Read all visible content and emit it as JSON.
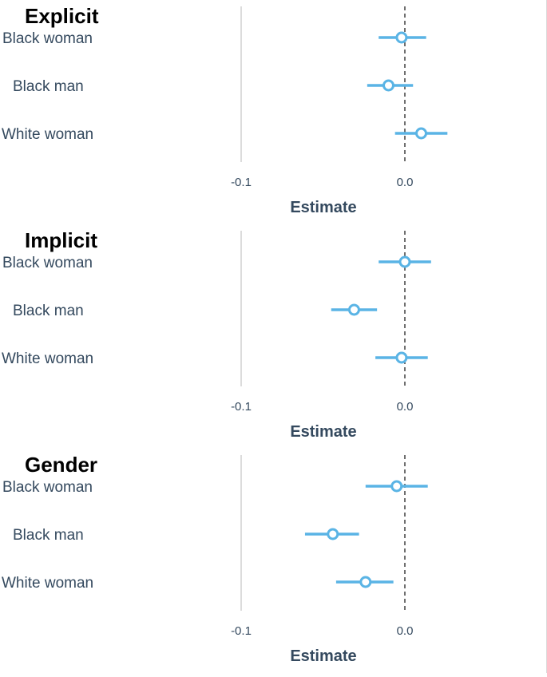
{
  "chart_data": [
    {
      "type": "forest",
      "title": "Explicit",
      "categories": [
        "Black woman",
        "Black man",
        "White woman"
      ],
      "estimates": [
        -0.002,
        -0.01,
        0.01
      ],
      "ci_low": [
        -0.016,
        -0.023,
        -0.006
      ],
      "ci_high": [
        0.013,
        0.005,
        0.026
      ],
      "xlabel": "Estimate",
      "xticks": [
        -0.1,
        0.0
      ],
      "xtick_labels": [
        "-0.1",
        "0.0"
      ],
      "xlim": [
        -0.146,
        0.072
      ],
      "reference_line": 0.0,
      "point_color": "#5ab4e5"
    },
    {
      "type": "forest",
      "title": "Implicit",
      "categories": [
        "Black woman",
        "Black man",
        "White woman"
      ],
      "estimates": [
        0.0,
        -0.031,
        -0.002
      ],
      "ci_low": [
        -0.016,
        -0.045,
        -0.018
      ],
      "ci_high": [
        0.016,
        -0.017,
        0.014
      ],
      "xlabel": "Estimate",
      "xticks": [
        -0.1,
        0.0
      ],
      "xtick_labels": [
        "-0.1",
        "0.0"
      ],
      "xlim": [
        -0.146,
        0.072
      ],
      "reference_line": 0.0,
      "point_color": "#5ab4e5"
    },
    {
      "type": "forest",
      "title": "Gender",
      "categories": [
        "Black woman",
        "Black man",
        "White woman"
      ],
      "estimates": [
        -0.005,
        -0.044,
        -0.024
      ],
      "ci_low": [
        -0.024,
        -0.061,
        -0.042
      ],
      "ci_high": [
        0.014,
        -0.028,
        -0.007
      ],
      "xlabel": "Estimate",
      "xticks": [
        -0.1,
        0.0
      ],
      "xtick_labels": [
        "-0.1",
        "0.0"
      ],
      "xlim": [
        -0.146,
        0.072
      ],
      "reference_line": 0.0,
      "point_color": "#5ab4e5"
    }
  ]
}
